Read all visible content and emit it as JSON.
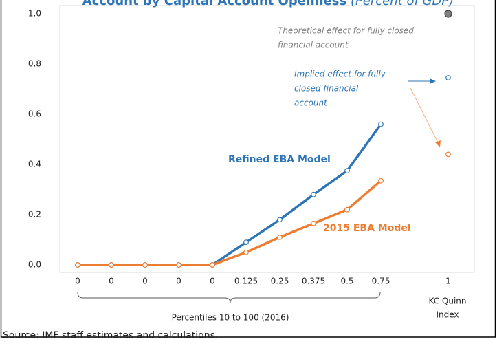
{
  "chart_data": {
    "type": "line",
    "title": "Account by Capital Account Openness",
    "subtitle": "(Percent of GDP)",
    "categories": [
      "0",
      "0",
      "0",
      "0",
      "0",
      "0.125",
      "0.25",
      "0.375",
      "0.5",
      "0.75",
      null,
      "1"
    ],
    "series": [
      {
        "name": "Refined EBA Model",
        "color": "#2e75b6",
        "values": [
          0,
          0,
          0,
          0,
          0,
          0.09,
          0.18,
          0.28,
          0.375,
          0.56,
          null,
          0.745
        ]
      },
      {
        "name": "2015 EBA Model",
        "color": "#ed7d31",
        "values": [
          0,
          0,
          0,
          0,
          0,
          0.05,
          0.11,
          0.165,
          0.22,
          0.335,
          null,
          0.44
        ]
      },
      {
        "color": "#808080",
        "values": [
          null,
          null,
          null,
          null,
          null,
          null,
          null,
          null,
          null,
          null,
          null,
          1.0
        ]
      }
    ],
    "ylim": [
      0,
      1.0
    ],
    "yticks": [
      {
        "value": 0,
        "label": "0.0"
      },
      0.2,
      0.4,
      0.6,
      0.8,
      {
        "value": 1.0,
        "label": "1.0"
      }
    ],
    "annotations": {
      "theoretical": [
        "Theoretical effect for fully closed",
        "financial account"
      ],
      "implied": [
        "Implied effect for fully",
        "closed financial",
        "account"
      ]
    },
    "x_label": "Percentiles 10 to 100  (2016)",
    "x_note": [
      "KC Quinn",
      "Index"
    ],
    "source": "Source: IMF staff estimates and calculations."
  }
}
